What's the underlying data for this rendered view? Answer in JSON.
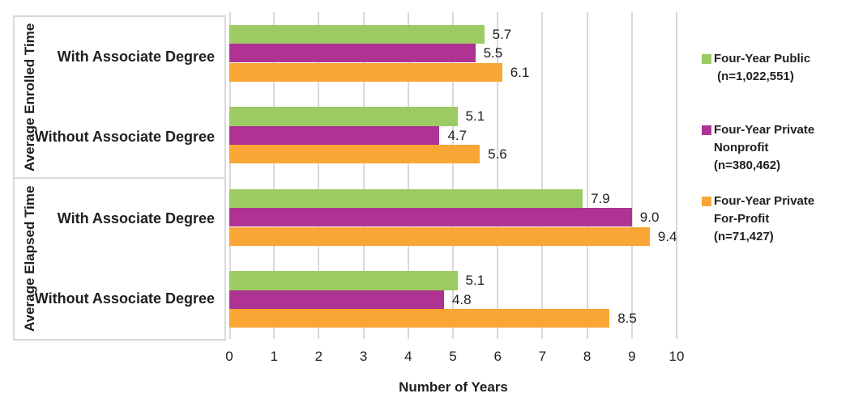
{
  "chart_data": {
    "type": "bar",
    "orientation": "horizontal",
    "xlabel": "Number of Years",
    "xlim": [
      0,
      10
    ],
    "xticks": [
      "0",
      "1",
      "2",
      "3",
      "4",
      "5",
      "6",
      "7",
      "8",
      "9",
      "10"
    ],
    "grid": "vertical",
    "legend_position": "right",
    "sections": [
      {
        "title": "Average Enrolled Time",
        "categories": [
          "With Associate Degree",
          "Without Associate Degree"
        ]
      },
      {
        "title": "Average Elapsed Time",
        "categories": [
          "With Associate Degree",
          "Without Associate Degree"
        ]
      }
    ],
    "group_labels": [
      "Average Enrolled Time - With Associate Degree",
      "Average Enrolled Time - Without Associate Degree",
      "Average Elapsed Time - With Associate Degree",
      "Average Elapsed Time - Without Associate Degree"
    ],
    "series": [
      {
        "name": "Four-Year Public (n=1,022,551)",
        "legend_lines": [
          "Four-Year Public",
          " (n=1,022,551)"
        ],
        "color": "#9CCB63",
        "values": [
          5.7,
          5.1,
          7.9,
          5.1
        ]
      },
      {
        "name": "Four-Year Private Nonprofit (n=380,462)",
        "legend_lines": [
          "Four-Year Private",
          "Nonprofit",
          "(n=380,462)"
        ],
        "color": "#AF3392",
        "values": [
          5.5,
          4.7,
          9.0,
          4.8
        ]
      },
      {
        "name": "Four-Year Private For-Profit (n=71,427)",
        "legend_lines": [
          "Four-Year Private",
          "For-Profit",
          "(n=71,427)"
        ],
        "color": "#FAA636",
        "values": [
          6.1,
          5.6,
          9.4,
          8.5
        ]
      }
    ],
    "colors": {
      "gridline": "#D9D9D9",
      "text": "#1F1F1F"
    }
  }
}
